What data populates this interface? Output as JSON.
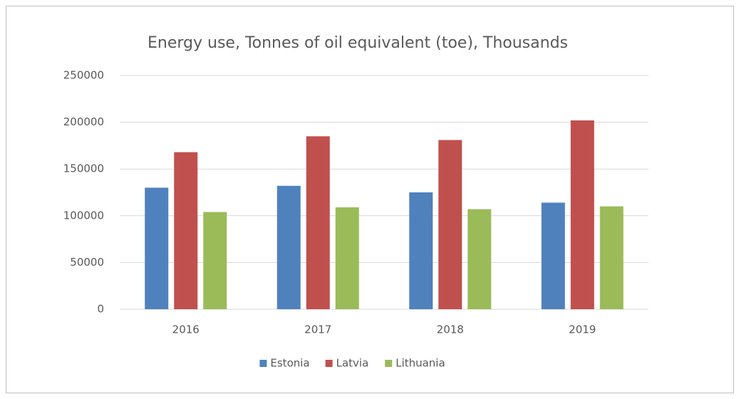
{
  "chart_data": {
    "type": "bar",
    "title": "Energy use, Tonnes of oil equivalent (toe), Thousands",
    "categories": [
      "2016",
      "2017",
      "2018",
      "2019"
    ],
    "series": [
      {
        "name": "Estonia",
        "color": "#4f81bd",
        "values": [
          130000,
          132000,
          125000,
          114000
        ]
      },
      {
        "name": "Latvia",
        "color": "#c0504d",
        "values": [
          168000,
          185000,
          181000,
          202000
        ]
      },
      {
        "name": "Lithuania",
        "color": "#9bbb59",
        "values": [
          104000,
          109000,
          107000,
          110000
        ]
      }
    ],
    "ylim": [
      0,
      250000
    ],
    "yticks": [
      0,
      50000,
      100000,
      150000,
      200000,
      250000
    ],
    "grid": true,
    "legend": "bottom"
  }
}
